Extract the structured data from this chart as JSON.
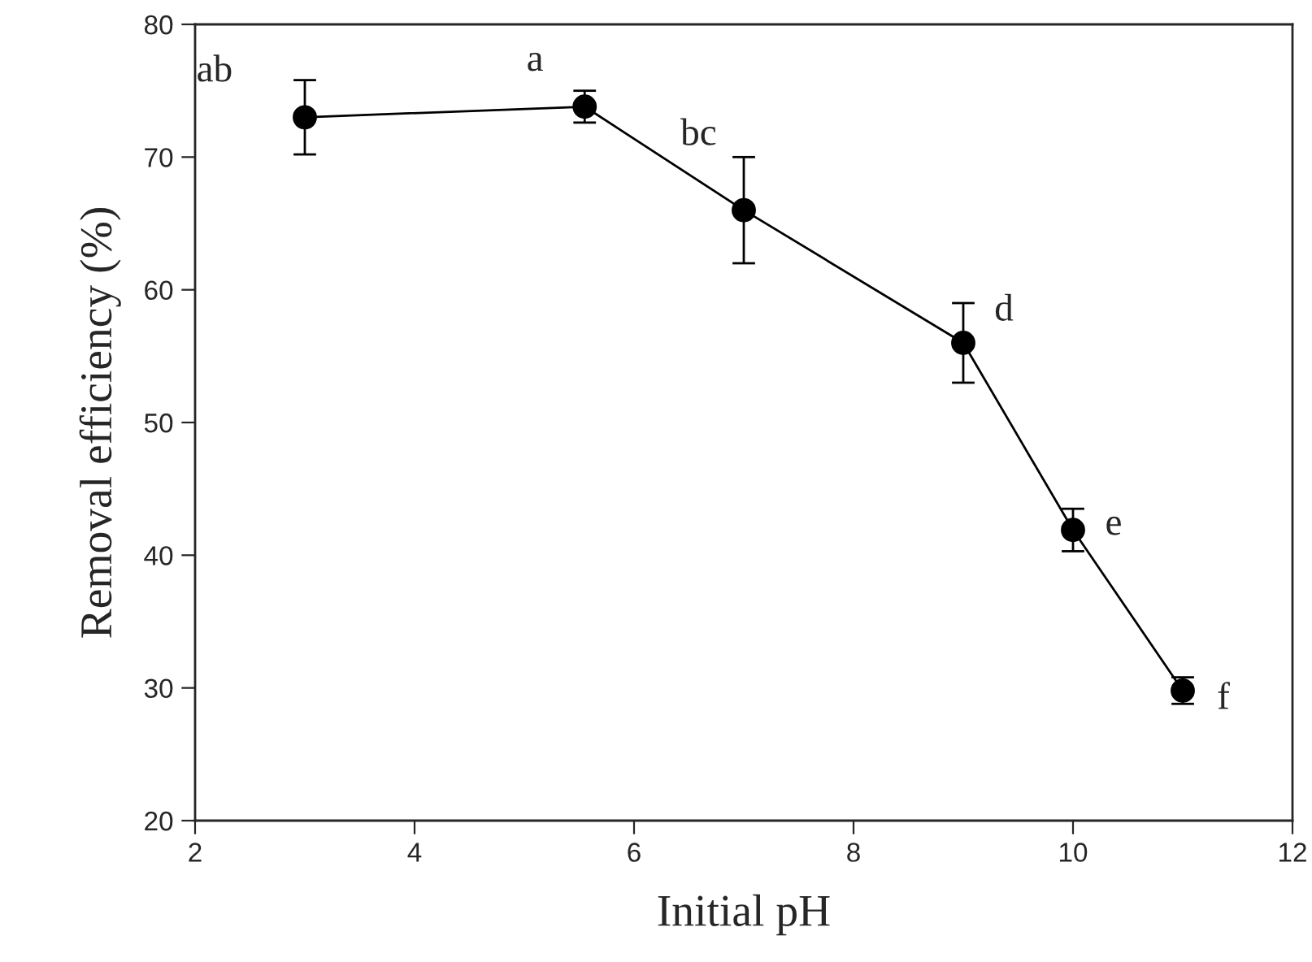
{
  "chart_data": {
    "type": "line",
    "xlabel": "Initial pH",
    "ylabel": "Removal efficiency (%)",
    "x": [
      3,
      5.55,
      7,
      9,
      10,
      11
    ],
    "series": [
      {
        "color": "#000000",
        "values": [
          73,
          73.8,
          66,
          56,
          41.9,
          29.8
        ],
        "errors": [
          2.8,
          1.2,
          4,
          3,
          1.6,
          1
        ]
      }
    ],
    "xlim": [
      2,
      12
    ],
    "xticks": [
      2,
      4,
      6,
      8,
      10,
      12
    ],
    "ylim": [
      20,
      80
    ],
    "yticks": [
      20,
      30,
      40,
      50,
      60,
      70,
      80
    ],
    "marker": "circle",
    "line_style": "solid",
    "grid": false,
    "annotations": [
      {
        "text": "ab",
        "x": 3,
        "y": 73
      },
      {
        "text": "a",
        "x": 5.55,
        "y": 73.8
      },
      {
        "text": "bc",
        "x": 7,
        "y": 66
      },
      {
        "text": "d",
        "x": 9,
        "y": 56
      },
      {
        "text": "e",
        "x": 10,
        "y": 41.9
      },
      {
        "text": "f",
        "x": 11,
        "y": 29.8
      }
    ]
  }
}
